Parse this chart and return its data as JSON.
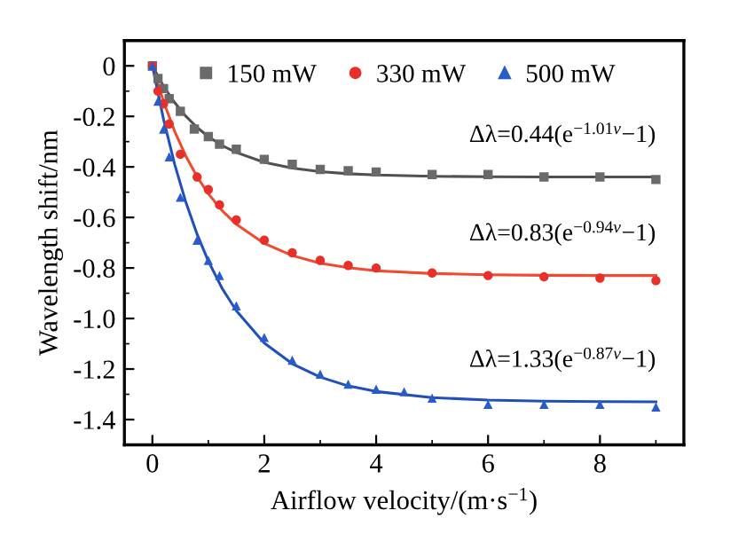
{
  "chart_data": {
    "type": "scatter",
    "xlabel": "Airflow velocity/(m·s$^{−1}$)",
    "ylabel": "Wavelength shift/nm",
    "xlim": [
      -0.5,
      9.5
    ],
    "xticks": [
      0,
      2,
      4,
      6,
      8
    ],
    "ylim": [
      -1.5,
      0.1
    ],
    "yticks": [
      {
        "value": 0,
        "label": "0"
      },
      {
        "value": -0.2,
        "label": "-0.2"
      },
      {
        "value": -0.4,
        "label": "-0.4"
      },
      {
        "value": -0.6,
        "label": "-0.6"
      },
      {
        "value": -0.8,
        "label": "-0.8"
      },
      {
        "value": -1.0,
        "label": "-1.0"
      },
      {
        "value": -1.2,
        "label": "-1.2"
      },
      {
        "value": -1.4,
        "label": "-1.4"
      }
    ],
    "grid": false,
    "legend": "top",
    "series": [
      {
        "name": "150 mW",
        "marker": "square",
        "color": "#6a6a6a",
        "x": [
          0,
          0.1,
          0.2,
          0.3,
          0.5,
          0.75,
          1,
          1.2,
          1.5,
          2,
          2.5,
          3,
          3.5,
          4,
          5,
          6,
          7,
          8,
          9
        ],
        "values": [
          0,
          -0.05,
          -0.09,
          -0.13,
          -0.18,
          -0.25,
          -0.28,
          -0.31,
          -0.33,
          -0.37,
          -0.39,
          -0.41,
          -0.415,
          -0.42,
          -0.43,
          -0.43,
          -0.44,
          -0.44,
          -0.45
        ]
      },
      {
        "name": "330 mW",
        "marker": "circle",
        "color": "#e8302a",
        "x": [
          0,
          0.1,
          0.2,
          0.3,
          0.5,
          0.8,
          1,
          1.2,
          1.5,
          2,
          2.5,
          3,
          3.5,
          4,
          5,
          6,
          7,
          8,
          9
        ],
        "values": [
          0,
          -0.1,
          -0.15,
          -0.23,
          -0.35,
          -0.44,
          -0.49,
          -0.55,
          -0.61,
          -0.69,
          -0.74,
          -0.77,
          -0.79,
          -0.8,
          -0.82,
          -0.83,
          -0.835,
          -0.84,
          -0.85
        ]
      },
      {
        "name": "500 mW",
        "marker": "triangle",
        "color": "#2a5cc8",
        "x": [
          0,
          0.1,
          0.2,
          0.3,
          0.5,
          0.8,
          1,
          1.2,
          1.5,
          2,
          2.5,
          3,
          3.5,
          4,
          4.5,
          5,
          6,
          7,
          8,
          9
        ],
        "values": [
          0,
          -0.14,
          -0.25,
          -0.36,
          -0.52,
          -0.69,
          -0.77,
          -0.83,
          -0.95,
          -1.075,
          -1.165,
          -1.22,
          -1.26,
          -1.28,
          -1.29,
          -1.315,
          -1.34,
          -1.34,
          -1.34,
          -1.35
        ]
      },
      {
        "type": "line",
        "line_style": "solid",
        "color": "#505050",
        "x": [
          0,
          0.2,
          0.4,
          0.6,
          0.8,
          1,
          1.25,
          1.5,
          2,
          2.5,
          3,
          3.5,
          4,
          5,
          6,
          7,
          8,
          9
        ],
        "values": [
          0,
          -0.081,
          -0.146,
          -0.2,
          -0.244,
          -0.28,
          -0.316,
          -0.343,
          -0.382,
          -0.405,
          -0.419,
          -0.427,
          -0.432,
          -0.437,
          -0.439,
          -0.44,
          -0.44,
          -0.44
        ]
      },
      {
        "type": "line",
        "line_style": "solid",
        "color": "#f04a30",
        "x": [
          0,
          0.2,
          0.4,
          0.6,
          0.8,
          1,
          1.25,
          1.5,
          2,
          2.5,
          3,
          3.5,
          4,
          5,
          6,
          7,
          8,
          9
        ],
        "values": [
          0,
          -0.142,
          -0.26,
          -0.358,
          -0.439,
          -0.506,
          -0.574,
          -0.627,
          -0.703,
          -0.751,
          -0.781,
          -0.799,
          -0.811,
          -0.822,
          -0.827,
          -0.829,
          -0.83,
          -0.83
        ]
      },
      {
        "type": "line",
        "line_style": "solid",
        "color": "#2050b8",
        "x": [
          0,
          0.2,
          0.4,
          0.6,
          0.8,
          1,
          1.25,
          1.5,
          2,
          2.5,
          3,
          3.5,
          4,
          5,
          6,
          7,
          8,
          9
        ],
        "values": [
          0,
          -0.212,
          -0.391,
          -0.541,
          -0.667,
          -0.773,
          -0.882,
          -0.969,
          -1.097,
          -1.179,
          -1.232,
          -1.267,
          -1.289,
          -1.313,
          -1.323,
          -1.327,
          -1.329,
          -1.33
        ]
      }
    ],
    "annotations": [
      "Δλ=0.44(e$^{−1.01v}$−1)",
      "Δλ=0.83(e$^{−0.94v}$−1)",
      "Δλ=1.33(e$^{−0.87v}$−1)"
    ]
  }
}
